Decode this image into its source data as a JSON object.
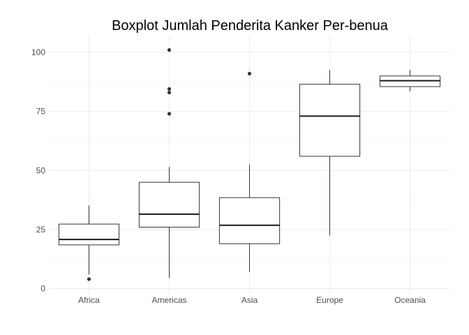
{
  "chart_data": {
    "type": "boxplot",
    "title": "Boxplot Jumlah Penderita Kanker Per-benua",
    "xlabel": "",
    "ylabel": "",
    "categories": [
      "Africa",
      "Americas",
      "Asia",
      "Europe",
      "Oceania"
    ],
    "ylim": [
      0,
      105
    ],
    "yticks": [
      0,
      25,
      50,
      75,
      100
    ],
    "grid": true,
    "boxes": [
      {
        "category": "Africa",
        "min": 6,
        "q1": 18.5,
        "median": 20.8,
        "q3": 27.3,
        "max": 35.2,
        "outliers": [
          4
        ]
      },
      {
        "category": "Americas",
        "min": 4.5,
        "q1": 26,
        "median": 31.5,
        "q3": 45,
        "max": 51.5,
        "outliers": [
          74,
          83,
          84.5,
          101
        ]
      },
      {
        "category": "Asia",
        "min": 7,
        "q1": 19,
        "median": 26.8,
        "q3": 38.5,
        "max": 52.5,
        "outliers": [
          91
        ]
      },
      {
        "category": "Europe",
        "min": 22.5,
        "q1": 56,
        "median": 73,
        "q3": 86.5,
        "max": 92.5,
        "outliers": []
      },
      {
        "category": "Oceania",
        "min": 83.5,
        "q1": 85.5,
        "median": 88,
        "q3": 90,
        "max": 92.5,
        "outliers": []
      }
    ]
  }
}
